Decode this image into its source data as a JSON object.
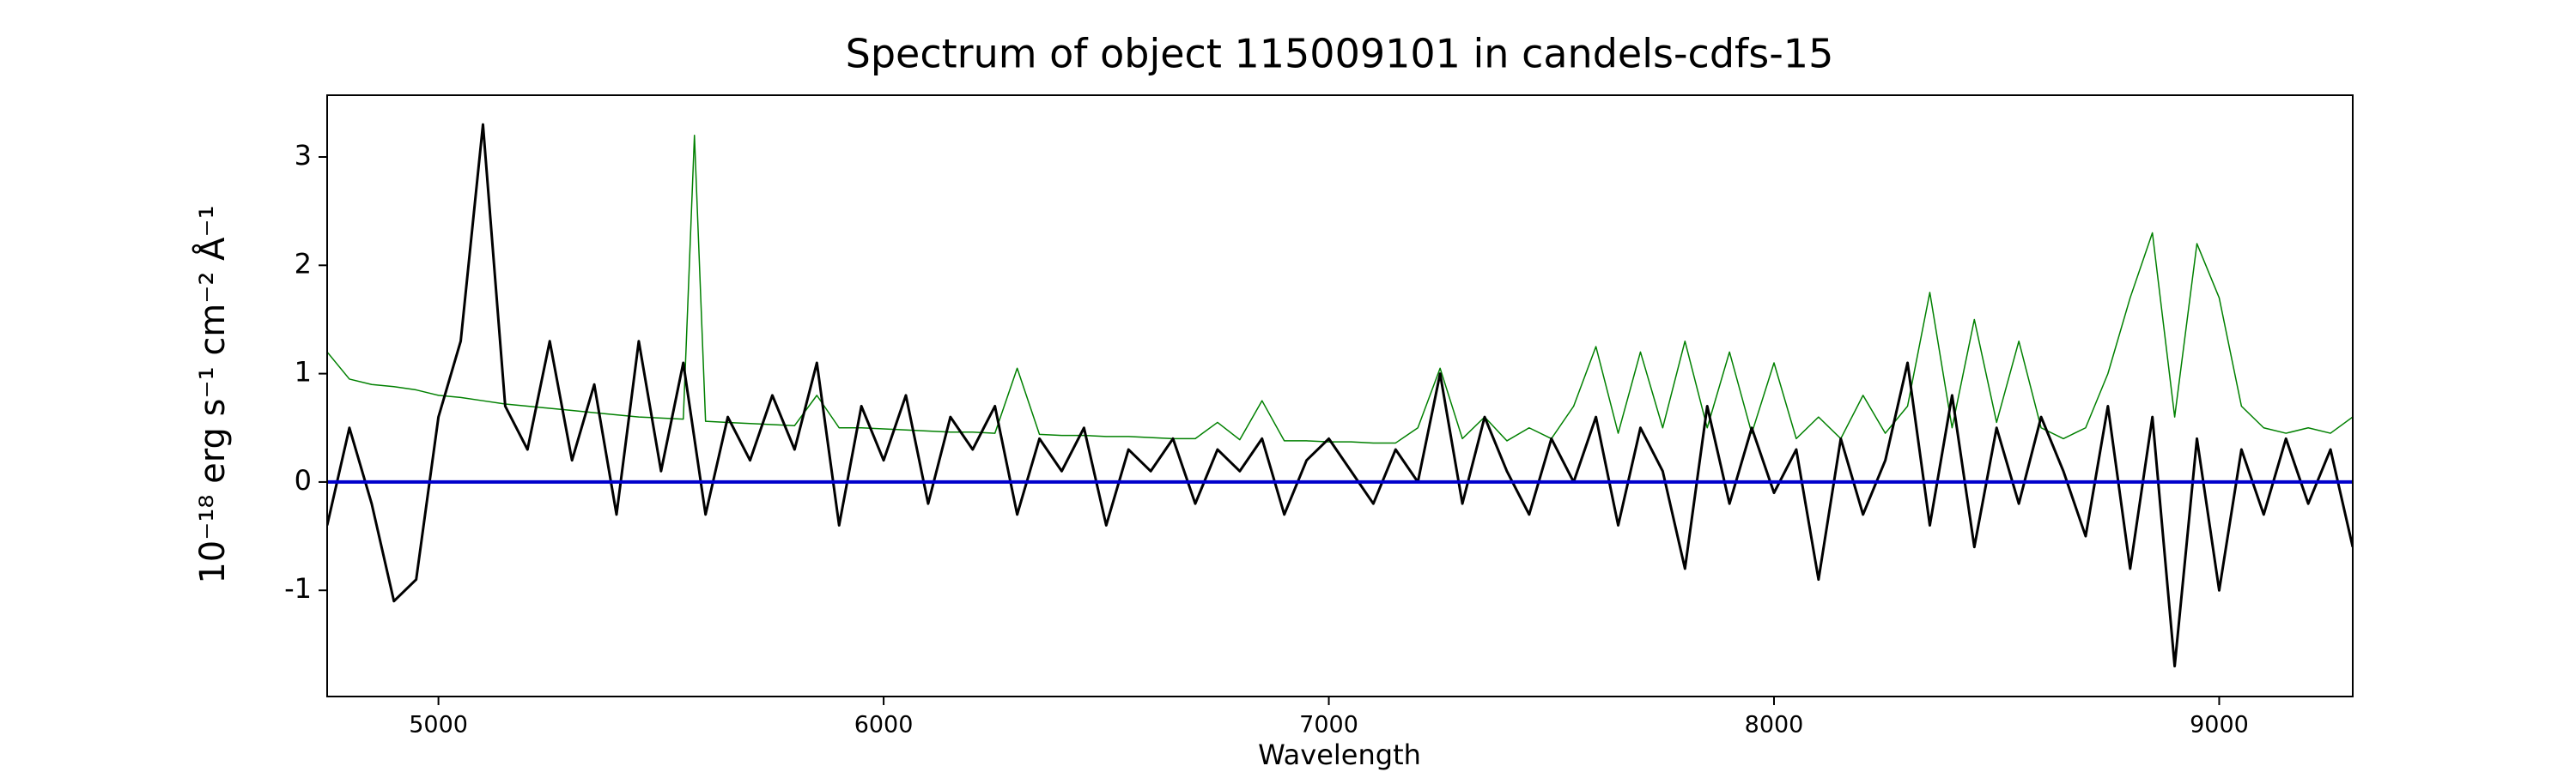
{
  "chart_data": {
    "type": "line",
    "title": "Spectrum of object 115009101 in candels-cdfs-15",
    "xlabel": "Wavelength",
    "ylabel": "10⁻¹⁸ erg s⁻¹ cm⁻² Å⁻¹",
    "xlim": [
      4750,
      9300
    ],
    "ylim": [
      -1.98,
      3.57
    ],
    "xticks": [
      5000,
      6000,
      7000,
      8000,
      9000
    ],
    "yticks": [
      -1,
      0,
      1,
      2,
      3
    ],
    "grid": false,
    "series": [
      {
        "color": "#008000",
        "width": 1.5,
        "x": [
          4750,
          4800,
          4850,
          4900,
          4950,
          5000,
          5050,
          5100,
          5150,
          5200,
          5250,
          5300,
          5350,
          5400,
          5450,
          5500,
          5550,
          5575,
          5600,
          5650,
          5700,
          5750,
          5800,
          5850,
          5900,
          5950,
          6000,
          6050,
          6100,
          6150,
          6200,
          6250,
          6300,
          6350,
          6400,
          6450,
          6500,
          6550,
          6600,
          6650,
          6700,
          6750,
          6800,
          6850,
          6900,
          6950,
          7000,
          7050,
          7100,
          7150,
          7200,
          7250,
          7300,
          7350,
          7400,
          7450,
          7500,
          7550,
          7600,
          7650,
          7700,
          7750,
          7800,
          7850,
          7900,
          7950,
          8000,
          8050,
          8100,
          8150,
          8200,
          8250,
          8300,
          8350,
          8400,
          8450,
          8500,
          8550,
          8600,
          8650,
          8700,
          8750,
          8800,
          8850,
          8900,
          8950,
          9000,
          9050,
          9100,
          9150,
          9200,
          9250,
          9300
        ],
        "values": [
          1.2,
          0.95,
          0.9,
          0.88,
          0.85,
          0.8,
          0.78,
          0.75,
          0.72,
          0.7,
          0.68,
          0.66,
          0.64,
          0.62,
          0.6,
          0.59,
          0.58,
          3.2,
          0.56,
          0.55,
          0.54,
          0.53,
          0.52,
          0.8,
          0.5,
          0.5,
          0.49,
          0.48,
          0.47,
          0.46,
          0.46,
          0.45,
          1.05,
          0.44,
          0.43,
          0.43,
          0.42,
          0.42,
          0.41,
          0.4,
          0.4,
          0.55,
          0.39,
          0.75,
          0.38,
          0.38,
          0.37,
          0.37,
          0.36,
          0.36,
          0.5,
          1.05,
          0.4,
          0.6,
          0.38,
          0.5,
          0.4,
          0.7,
          1.25,
          0.45,
          1.2,
          0.5,
          1.3,
          0.5,
          1.2,
          0.45,
          1.1,
          0.4,
          0.6,
          0.4,
          0.8,
          0.45,
          0.7,
          1.75,
          0.5,
          1.5,
          0.55,
          1.3,
          0.5,
          0.4,
          0.5,
          1.0,
          1.7,
          2.3,
          0.6,
          2.2,
          1.7,
          0.7,
          0.5,
          0.45,
          0.5,
          0.45,
          0.6
        ]
      },
      {
        "color": "#000000",
        "width": 3,
        "x": [
          4750,
          4800,
          4850,
          4900,
          4950,
          5000,
          5050,
          5100,
          5150,
          5200,
          5250,
          5300,
          5350,
          5400,
          5450,
          5500,
          5550,
          5600,
          5650,
          5700,
          5750,
          5800,
          5850,
          5900,
          5950,
          6000,
          6050,
          6100,
          6150,
          6200,
          6250,
          6300,
          6350,
          6400,
          6450,
          6500,
          6550,
          6600,
          6650,
          6700,
          6750,
          6800,
          6850,
          6900,
          6950,
          7000,
          7050,
          7100,
          7150,
          7200,
          7250,
          7300,
          7350,
          7400,
          7450,
          7500,
          7550,
          7600,
          7650,
          7700,
          7750,
          7800,
          7850,
          7900,
          7950,
          8000,
          8050,
          8100,
          8150,
          8200,
          8250,
          8300,
          8350,
          8400,
          8450,
          8500,
          8550,
          8600,
          8650,
          8700,
          8750,
          8800,
          8850,
          8900,
          8950,
          9000,
          9050,
          9100,
          9150,
          9200,
          9250,
          9300
        ],
        "values": [
          -0.4,
          0.5,
          -0.2,
          -1.1,
          -0.9,
          0.6,
          1.3,
          3.3,
          0.7,
          0.3,
          1.3,
          0.2,
          0.9,
          -0.3,
          1.3,
          0.1,
          1.1,
          -0.3,
          0.6,
          0.2,
          0.8,
          0.3,
          1.1,
          -0.4,
          0.7,
          0.2,
          0.8,
          -0.2,
          0.6,
          0.3,
          0.7,
          -0.3,
          0.4,
          0.1,
          0.5,
          -0.4,
          0.3,
          0.1,
          0.4,
          -0.2,
          0.3,
          0.1,
          0.4,
          -0.3,
          0.2,
          0.4,
          0.1,
          -0.2,
          0.3,
          0.0,
          1.0,
          -0.2,
          0.6,
          0.1,
          -0.3,
          0.4,
          0.0,
          0.6,
          -0.4,
          0.5,
          0.1,
          -0.8,
          0.7,
          -0.2,
          0.5,
          -0.1,
          0.3,
          -0.9,
          0.4,
          -0.3,
          0.2,
          1.1,
          -0.4,
          0.8,
          -0.6,
          0.5,
          -0.2,
          0.6,
          0.1,
          -0.5,
          0.7,
          -0.8,
          0.6,
          -1.7,
          0.4,
          -1.0,
          0.3,
          -0.3,
          0.4,
          -0.2,
          0.3,
          -0.6
        ]
      },
      {
        "color": "#0000cc",
        "width": 4,
        "x": [
          4750,
          9300
        ],
        "values": [
          0,
          0
        ]
      }
    ]
  }
}
